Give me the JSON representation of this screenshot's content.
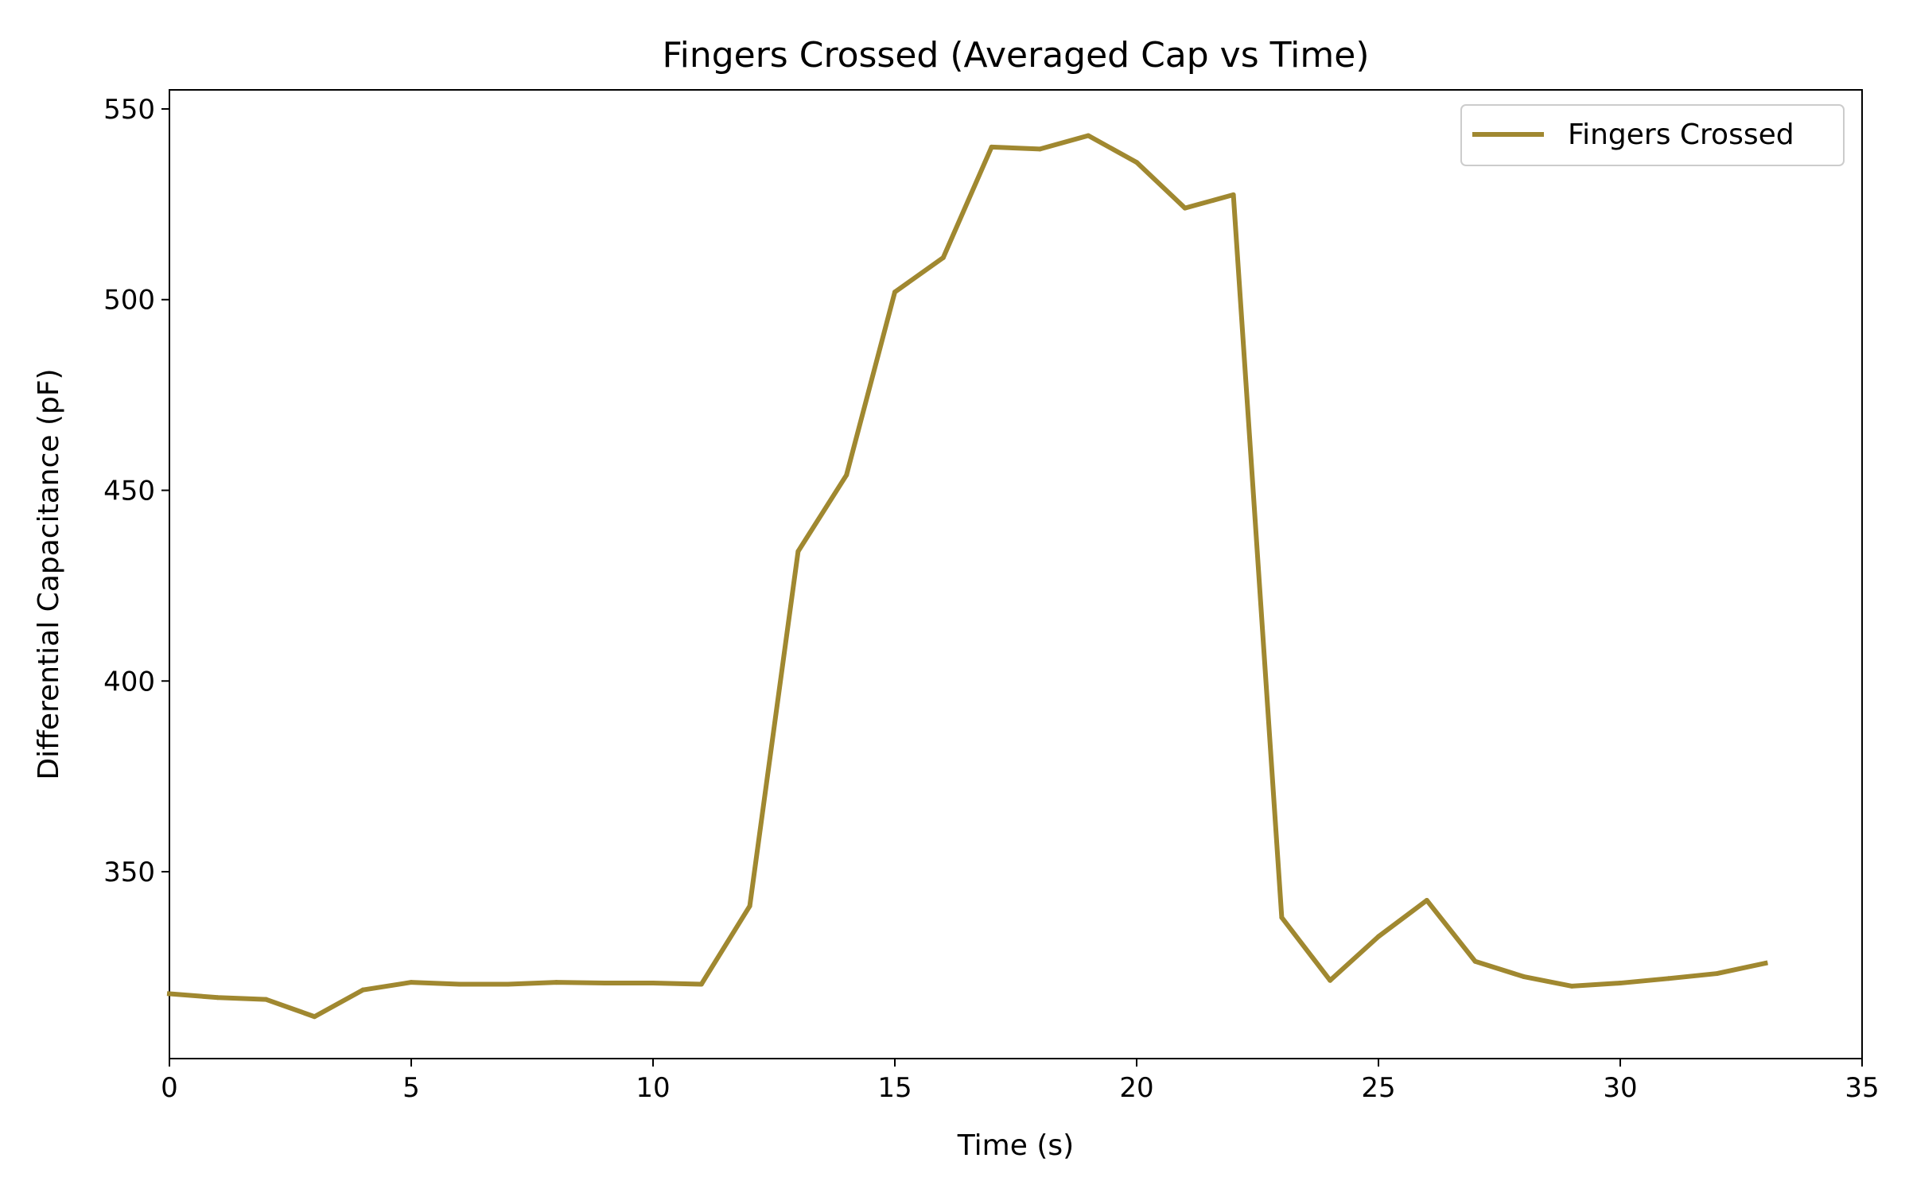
{
  "chart_data": {
    "type": "line",
    "title": "Fingers Crossed (Averaged Cap vs Time)",
    "xlabel": "Time (s)",
    "ylabel": "Differential Capacitance (pF)",
    "xlim": [
      0,
      35
    ],
    "ylim": [
      301,
      555
    ],
    "xticks": [
      0,
      5,
      10,
      15,
      20,
      25,
      30,
      35
    ],
    "yticks": [
      350,
      400,
      450,
      500,
      550
    ],
    "grid": false,
    "legend_position": "top-right",
    "series": [
      {
        "name": "Fingers Crossed",
        "color": "#a08830",
        "x": [
          0,
          1,
          2,
          3,
          4,
          5,
          6,
          7,
          8,
          9,
          10,
          11,
          12,
          13,
          14,
          15,
          16,
          17,
          18,
          19,
          20,
          21,
          22,
          23,
          24,
          25,
          26,
          27,
          28,
          29,
          30,
          31,
          32,
          33
        ],
        "y": [
          318,
          317,
          316.5,
          312,
          319,
          321,
          320.5,
          320.5,
          321,
          320.8,
          320.8,
          320.5,
          341,
          434,
          454,
          502,
          511,
          540,
          539.5,
          543,
          536,
          524,
          527.5,
          338,
          321.5,
          333,
          342.5,
          326.5,
          322.5,
          320,
          320.8,
          322,
          323.3,
          326
        ]
      }
    ]
  }
}
